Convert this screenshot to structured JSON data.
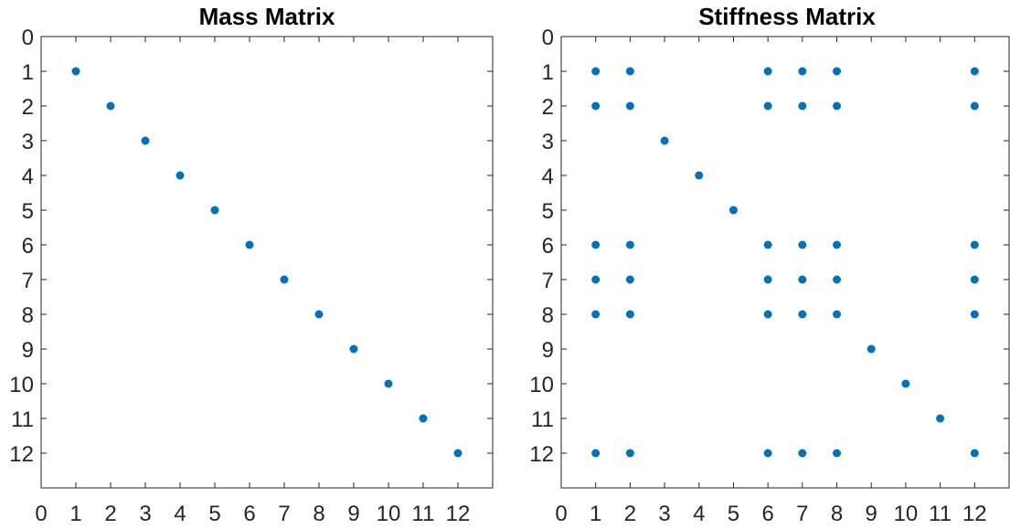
{
  "chart_data": [
    {
      "type": "scatter",
      "title": "Mass Matrix",
      "xlabel": "",
      "ylabel": "",
      "xlim": [
        0,
        13
      ],
      "ylim": [
        0,
        13
      ],
      "y_reversed": true,
      "xticks": [
        "0",
        "1",
        "2",
        "3",
        "4",
        "5",
        "6",
        "7",
        "8",
        "9",
        "10",
        "11",
        "12"
      ],
      "yticks": [
        "0",
        "1",
        "2",
        "3",
        "4",
        "5",
        "6",
        "7",
        "8",
        "9",
        "10",
        "11",
        "12"
      ],
      "grid": false,
      "marker_color": "#0072BD",
      "points": [
        [
          1,
          1
        ],
        [
          2,
          2
        ],
        [
          3,
          3
        ],
        [
          4,
          4
        ],
        [
          5,
          5
        ],
        [
          6,
          6
        ],
        [
          7,
          7
        ],
        [
          8,
          8
        ],
        [
          9,
          9
        ],
        [
          10,
          10
        ],
        [
          11,
          11
        ],
        [
          12,
          12
        ]
      ]
    },
    {
      "type": "scatter",
      "title": "Stiffness Matrix",
      "xlabel": "",
      "ylabel": "",
      "xlim": [
        0,
        13
      ],
      "ylim": [
        0,
        13
      ],
      "y_reversed": true,
      "xticks": [
        "0",
        "1",
        "2",
        "3",
        "4",
        "5",
        "6",
        "7",
        "8",
        "9",
        "10",
        "11",
        "12"
      ],
      "yticks": [
        "0",
        "1",
        "2",
        "3",
        "4",
        "5",
        "6",
        "7",
        "8",
        "9",
        "10",
        "11",
        "12"
      ],
      "grid": false,
      "marker_color": "#0072BD",
      "points": [
        [
          1,
          1
        ],
        [
          2,
          1
        ],
        [
          6,
          1
        ],
        [
          7,
          1
        ],
        [
          8,
          1
        ],
        [
          12,
          1
        ],
        [
          1,
          2
        ],
        [
          2,
          2
        ],
        [
          6,
          2
        ],
        [
          7,
          2
        ],
        [
          8,
          2
        ],
        [
          12,
          2
        ],
        [
          3,
          3
        ],
        [
          4,
          4
        ],
        [
          5,
          5
        ],
        [
          1,
          6
        ],
        [
          2,
          6
        ],
        [
          6,
          6
        ],
        [
          7,
          6
        ],
        [
          8,
          6
        ],
        [
          12,
          6
        ],
        [
          1,
          7
        ],
        [
          2,
          7
        ],
        [
          6,
          7
        ],
        [
          7,
          7
        ],
        [
          8,
          7
        ],
        [
          12,
          7
        ],
        [
          1,
          8
        ],
        [
          2,
          8
        ],
        [
          6,
          8
        ],
        [
          7,
          8
        ],
        [
          8,
          8
        ],
        [
          12,
          8
        ],
        [
          9,
          9
        ],
        [
          10,
          10
        ],
        [
          11,
          11
        ],
        [
          1,
          12
        ],
        [
          2,
          12
        ],
        [
          6,
          12
        ],
        [
          7,
          12
        ],
        [
          8,
          12
        ],
        [
          12,
          12
        ]
      ]
    }
  ]
}
